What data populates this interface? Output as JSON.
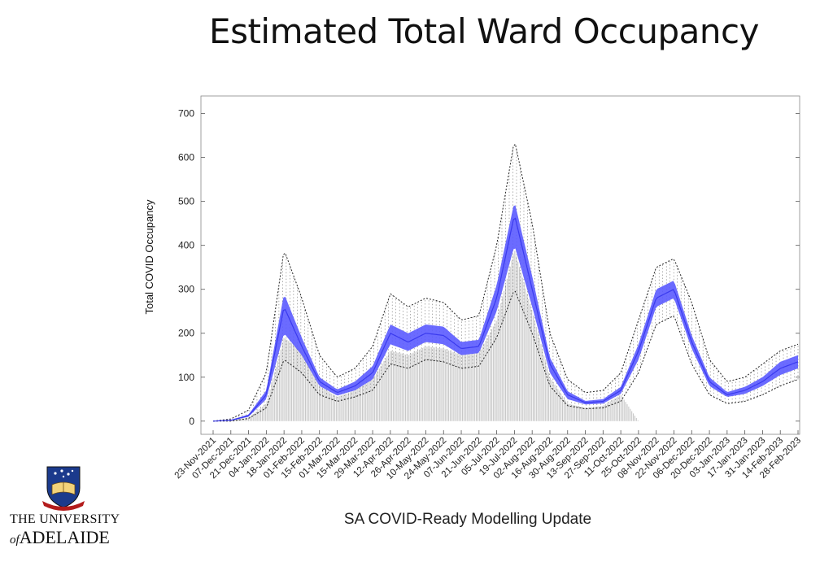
{
  "slide": {
    "title": "Estimated Total Ward Occupancy",
    "footer": "SA COVID-Ready Modelling Update",
    "logo_line1": "THE UNIVERSITY",
    "logo_of": "of",
    "logo_line2": "ADELAIDE"
  },
  "chart_data": {
    "type": "line",
    "title": "Estimated Total Ward Occupancy",
    "ylabel": "Total COVID Occupancy",
    "xlabel": "",
    "ylim": [
      -30,
      740
    ],
    "yticks": [
      0,
      100,
      200,
      300,
      400,
      500,
      600,
      700
    ],
    "x_dates": [
      "23-Nov-2021",
      "07-Dec-2021",
      "21-Dec-2021",
      "04-Jan-2022",
      "18-Jan-2022",
      "01-Feb-2022",
      "15-Feb-2022",
      "01-Mar-2022",
      "15-Mar-2022",
      "29-Mar-2022",
      "12-Apr-2022",
      "26-Apr-2022",
      "10-May-2022",
      "24-May-2022",
      "07-Jun-2022",
      "21-Jun-2022",
      "05-Jul-2022",
      "19-Jul-2022",
      "02-Aug-2022",
      "16-Aug-2022",
      "30-Aug-2022",
      "13-Sep-2022",
      "27-Sep-2022",
      "11-Oct-2022",
      "25-Oct-2022",
      "08-Nov-2022",
      "22-Nov-2022",
      "06-Dec-2022",
      "20-Dec-2022",
      "03-Jan-2023",
      "17-Jan-2023",
      "31-Jan-2023",
      "14-Feb-2023",
      "28-Feb-2023"
    ],
    "grid": false,
    "colors": {
      "median_band": "#5b5bff",
      "interval": "#222222",
      "observed_bars": "#c8c8c8"
    },
    "series": [
      {
        "values_at_ticks": {
          "median": [
            0,
            2,
            12,
            60,
            260,
            170,
            90,
            65,
            80,
            110,
            200,
            180,
            200,
            195,
            165,
            170,
            280,
            470,
            300,
            130,
            60,
            42,
            45,
            70,
            160,
            280,
            300,
            180,
            90,
            60,
            70,
            90,
            120,
            135
          ],
          "band_low": [
            0,
            1,
            10,
            50,
            200,
            150,
            80,
            58,
            70,
            95,
            175,
            160,
            180,
            175,
            150,
            155,
            250,
            400,
            260,
            110,
            50,
            38,
            40,
            62,
            140,
            260,
            280,
            165,
            80,
            55,
            62,
            80,
            105,
            120
          ],
          "band_high": [
            0,
            3,
            15,
            70,
            290,
            190,
            100,
            72,
            90,
            125,
            220,
            200,
            220,
            215,
            180,
            185,
            310,
            500,
            330,
            145,
            68,
            46,
            50,
            78,
            175,
            300,
            320,
            195,
            100,
            66,
            78,
            100,
            135,
            150
          ],
          "pi_low": [
            0,
            0,
            6,
            30,
            140,
            110,
            60,
            45,
            55,
            70,
            130,
            120,
            140,
            135,
            120,
            125,
            190,
            300,
            200,
            80,
            35,
            28,
            30,
            45,
            110,
            220,
            240,
            130,
            60,
            40,
            45,
            60,
            80,
            95
          ],
          "pi_high": [
            0,
            5,
            25,
            110,
            390,
            280,
            150,
            100,
            120,
            170,
            290,
            260,
            280,
            270,
            230,
            240,
            400,
            640,
            450,
            200,
            95,
            65,
            70,
            110,
            230,
            350,
            370,
            270,
            140,
            90,
            100,
            130,
            160,
            175
          ],
          "observed": [
            0,
            1,
            8,
            40,
            190,
            160,
            80,
            55,
            70,
            95,
            160,
            150,
            170,
            165,
            150,
            155,
            230,
            390,
            250,
            100,
            40,
            30,
            35,
            60,
            0,
            0,
            0,
            0,
            0,
            0,
            0,
            0,
            0,
            0
          ]
        }
      }
    ]
  }
}
